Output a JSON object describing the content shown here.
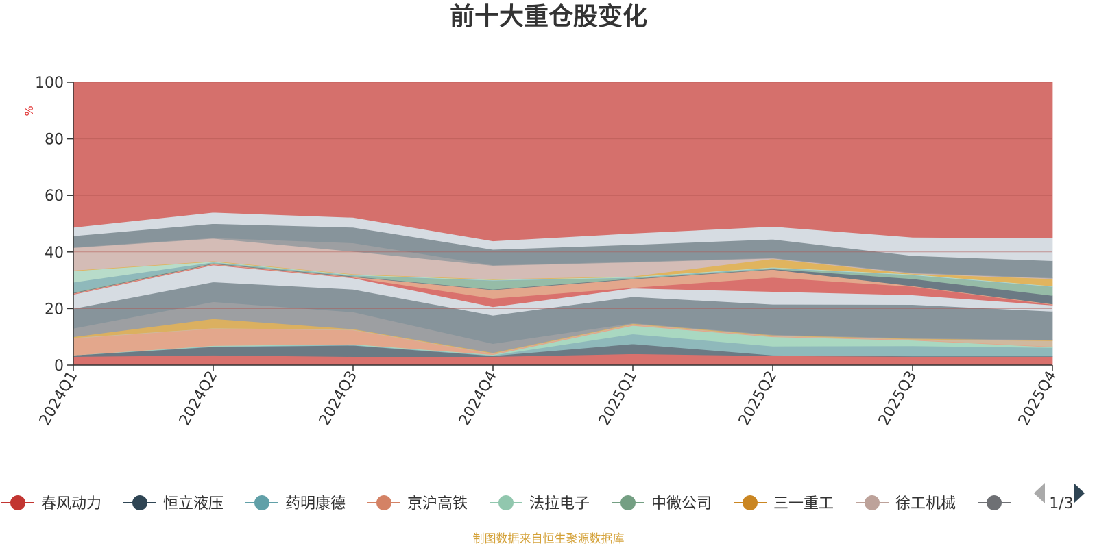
{
  "chart_data": {
    "type": "area",
    "title": "前十大重仓股变化",
    "ylabel": "%",
    "xlabel": "",
    "ylim": [
      0,
      100
    ],
    "yticks": [
      0,
      20,
      40,
      60,
      80,
      100
    ],
    "categories": [
      "2024Q1",
      "2024Q2",
      "2024Q3",
      "2024Q4",
      "2025Q1",
      "2025Q2",
      "2025Q3",
      "2025Q4"
    ],
    "bands": [
      {
        "name": "bottom-base",
        "color": "#d9716d",
        "values": [
          3,
          3.5,
          3,
          3,
          4,
          3.3,
          3,
          3
        ]
      },
      {
        "name": "band-dark-1",
        "color": "#6b7a84",
        "values": [
          0.5,
          3,
          4,
          0.3,
          3.5,
          0.2,
          0.2,
          0.2
        ]
      },
      {
        "name": "band-teal-1",
        "color": "#8fb9bb",
        "values": [
          0,
          0.2,
          0.2,
          0.2,
          3.5,
          3.2,
          3.6,
          3
        ]
      },
      {
        "name": "band-green-1",
        "color": "#a9d8c1",
        "values": [
          0,
          0.2,
          0.2,
          0.2,
          3,
          3.3,
          2,
          0.2
        ]
      },
      {
        "name": "band-salmon-1",
        "color": "#e3a78c",
        "values": [
          6,
          6,
          5,
          0.3,
          0.3,
          0.2,
          0.2,
          0.2
        ]
      },
      {
        "name": "band-tan-1",
        "color": "#cfb99f",
        "values": [
          0.2,
          0.2,
          0.2,
          0.2,
          0.2,
          0.2,
          0.2,
          2
        ]
      },
      {
        "name": "band-yellow-1",
        "color": "#dbb060",
        "values": [
          0.3,
          3.3,
          0.2,
          0.2,
          0.2,
          0.2,
          0.2,
          0.2
        ]
      },
      {
        "name": "band-gray-1",
        "color": "#9d9fa2",
        "values": [
          3,
          6,
          6,
          3.2,
          0.2,
          0.2,
          0.2,
          0.2
        ]
      },
      {
        "name": "band-slate-1",
        "color": "#87949b",
        "values": [
          7,
          7,
          8,
          10,
          9.3,
          10.7,
          11.8,
          10
        ]
      },
      {
        "name": "band-light-1",
        "color": "#d6dce2",
        "values": [
          5,
          6,
          4,
          3,
          3,
          4.5,
          3.4,
          2.2
        ]
      },
      {
        "name": "band-red-2",
        "color": "#d9716d",
        "values": [
          0.2,
          0.2,
          0.2,
          3,
          0.2,
          5,
          3,
          0.2
        ]
      },
      {
        "name": "band-salmon-2",
        "color": "#e3a78c",
        "values": [
          0.2,
          0.2,
          0.2,
          3,
          3,
          2.8,
          0.2,
          0.2
        ]
      },
      {
        "name": "band-dark-2",
        "color": "#6b7a84",
        "values": [
          0.2,
          0.2,
          0.2,
          0.2,
          0.2,
          0.2,
          2.5,
          3
        ]
      },
      {
        "name": "band-green-2",
        "color": "#96bca7",
        "values": [
          0.2,
          0.2,
          0.2,
          3,
          0.2,
          0.2,
          1.2,
          3
        ]
      },
      {
        "name": "band-teal-2",
        "color": "#8fb9bb",
        "values": [
          3.5,
          0.2,
          0.2,
          0.2,
          0.2,
          0.2,
          0.2,
          0.2
        ]
      },
      {
        "name": "band-mint-2",
        "color": "#b8dcca",
        "values": [
          4,
          0.2,
          0.2,
          0.2,
          0.2,
          0.2,
          0.2,
          0.2
        ]
      },
      {
        "name": "band-orange-2",
        "color": "#e0b45e",
        "values": [
          0.2,
          0.2,
          0.2,
          0.2,
          0.2,
          3,
          0.2,
          2.5
        ]
      },
      {
        "name": "band-pink",
        "color": "#d4bcb6",
        "values": [
          8,
          8,
          8,
          4.8,
          5,
          0.2,
          0.2,
          0.2
        ]
      },
      {
        "name": "band-gray-2",
        "color": "#9d9fa2",
        "values": [
          0.2,
          0.2,
          3,
          0.2,
          0.2,
          0.2,
          0.2,
          0.2
        ]
      },
      {
        "name": "band-slate-2",
        "color": "#87949b",
        "values": [
          4,
          5,
          5.5,
          5.5,
          6,
          6.5,
          6,
          6
        ]
      },
      {
        "name": "band-light-2",
        "color": "#d6dce2",
        "values": [
          3,
          4,
          3.5,
          3,
          4,
          4.5,
          6.5,
          8
        ]
      },
      {
        "name": "top-remainder",
        "color": "#d5706c",
        "values": [
          52.5,
          48.8,
          48.8,
          57.3,
          54.3,
          51.8,
          54.9,
          56.4
        ]
      }
    ]
  },
  "legend": {
    "items": [
      {
        "label": "春风动力",
        "color": "#c23531"
      },
      {
        "label": "恒立液压",
        "color": "#2f4554"
      },
      {
        "label": "药明康德",
        "color": "#61a0a8"
      },
      {
        "label": "京沪高铁",
        "color": "#d48265"
      },
      {
        "label": "法拉电子",
        "color": "#91c7ae"
      },
      {
        "label": "中微公司",
        "color": "#749f83"
      },
      {
        "label": "三一重工",
        "color": "#ca8622"
      },
      {
        "label": "徐工机械",
        "color": "#bda29a"
      },
      {
        "label": "",
        "color": "#6e7074"
      }
    ],
    "page": "1/3"
  },
  "source_note": "制图数据来自恒生聚源数据库"
}
